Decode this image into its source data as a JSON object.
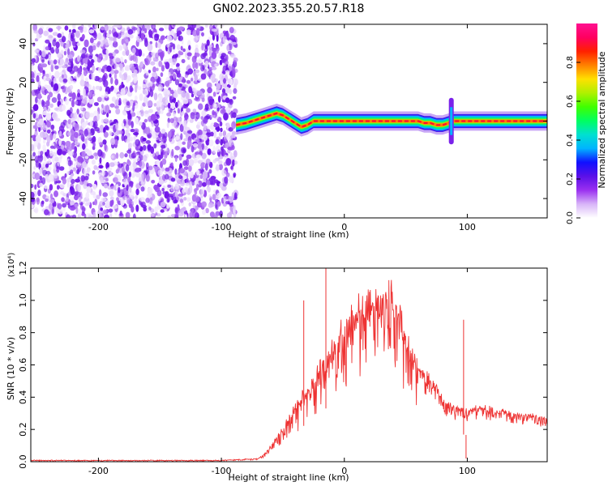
{
  "title": "GN02.2023.355.20.57.R18",
  "chart_data": [
    {
      "type": "heatmap",
      "xlabel": "Height of straight line (km)",
      "ylabel": "Frequency (Hz)",
      "xlim": [
        -255,
        165
      ],
      "ylim": [
        -50,
        50
      ],
      "x_ticks": [
        -200,
        -100,
        0,
        100
      ],
      "y_ticks": [
        -40,
        -20,
        0,
        20,
        40
      ],
      "noise_region_x": [
        -255,
        -88
      ],
      "ridge": {
        "x": [
          -88,
          -80,
          -70,
          -60,
          -55,
          -50,
          -45,
          -40,
          -35,
          -30,
          -25,
          -20,
          -10,
          0,
          20,
          40,
          60,
          65,
          70,
          75,
          80,
          85,
          88,
          100,
          120,
          140,
          160,
          165
        ],
        "y": [
          -2,
          -1,
          1,
          3,
          4,
          3,
          1,
          -1,
          -3,
          -2,
          0,
          0,
          0,
          0,
          0,
          0,
          0,
          -1,
          -1,
          -2,
          -2,
          -1,
          0,
          0,
          0,
          0,
          0,
          0
        ]
      },
      "spike": {
        "x": 87,
        "y_range": [
          -12,
          12
        ]
      },
      "colorbar": {
        "label": "Normalized spectral amplitude",
        "range": [
          0.0,
          1.0
        ],
        "ticks": [
          "0.0",
          "0.2",
          "0.4",
          "0.6",
          "0.8"
        ],
        "tick_values": [
          0.0,
          0.2,
          0.4,
          0.6,
          0.8
        ],
        "colors": [
          "#ffffff",
          "#d8b4f8",
          "#9a30f0",
          "#5a10e8",
          "#1010ff",
          "#00b4ff",
          "#00e0d0",
          "#00ff60",
          "#40ff00",
          "#b0f000",
          "#ffe000",
          "#ff8000",
          "#ff2000",
          "#ff0060",
          "#ff1090"
        ]
      }
    },
    {
      "type": "line",
      "xlabel": "Height of straight line (km)",
      "ylabel": "SNR (10 * v/v)",
      "y_multiplier": "(x10⁴)",
      "xlim": [
        -255,
        165
      ],
      "ylim": [
        0,
        1.2
      ],
      "x_ticks": [
        -200,
        -100,
        0,
        100
      ],
      "y_ticks": [
        "0.0",
        "0.2",
        "0.4",
        "0.6",
        "0.8",
        "1.0",
        "1.2"
      ],
      "y_tick_values": [
        0.0,
        0.2,
        0.4,
        0.6,
        0.8,
        1.0,
        1.2
      ],
      "color": "#ee3333",
      "envelope": {
        "x": [
          -255,
          -100,
          -70,
          -65,
          -60,
          -55,
          -50,
          -45,
          -40,
          -35,
          -30,
          -25,
          -20,
          -15,
          -10,
          -5,
          0,
          5,
          10,
          15,
          20,
          25,
          30,
          35,
          40,
          45,
          50,
          55,
          60,
          65,
          70,
          75,
          80,
          85,
          90,
          95,
          100,
          105,
          110,
          120,
          130,
          140,
          150,
          160,
          165
        ],
        "y": [
          0.01,
          0.01,
          0.02,
          0.05,
          0.1,
          0.16,
          0.22,
          0.28,
          0.35,
          0.42,
          0.48,
          0.54,
          0.6,
          0.66,
          0.72,
          0.8,
          0.88,
          0.94,
          0.99,
          1.03,
          1.06,
          1.08,
          1.09,
          1.08,
          1.05,
          0.98,
          0.86,
          0.7,
          0.6,
          0.56,
          0.53,
          0.48,
          0.4,
          0.36,
          0.35,
          0.34,
          0.33,
          0.34,
          0.35,
          0.34,
          0.32,
          0.3,
          0.3,
          0.28,
          0.27
        ]
      },
      "spikes": [
        {
          "x": -33,
          "y": 1.0
        },
        {
          "x": -15,
          "y": 1.2
        },
        {
          "x": 97,
          "y": 0.88
        },
        {
          "x": 99,
          "y": 0.02
        }
      ]
    }
  ]
}
